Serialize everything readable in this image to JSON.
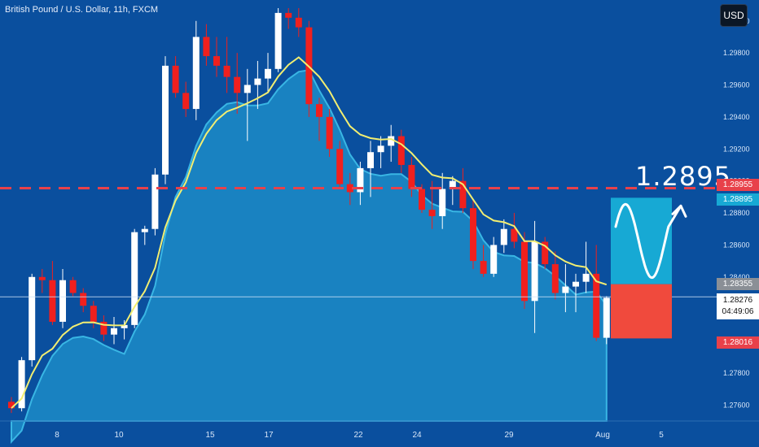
{
  "chart_data": {
    "type": "candlestick",
    "title": "British Pound / U.S. Dollar, 11h, FXCM",
    "currency_button": "USD",
    "ylim": [
      1.275,
      1.3008
    ],
    "y_ticks": [
      "1.27600",
      "1.27800",
      "1.28000",
      "1.28200",
      "1.28400",
      "1.28600",
      "1.28800",
      "1.29000",
      "1.29200",
      "1.29400",
      "1.29600",
      "1.29800",
      "1.30000"
    ],
    "x_ticks": [
      "8",
      "10",
      "15",
      "17",
      "22",
      "24",
      "29",
      "Aug",
      "5"
    ],
    "candles": [
      [
        1.2762,
        1.2765,
        1.2755,
        1.2758
      ],
      [
        1.2758,
        1.279,
        1.2756,
        1.2788
      ],
      [
        1.2788,
        1.2842,
        1.2784,
        1.284
      ],
      [
        1.284,
        1.2845,
        1.283,
        1.2838
      ],
      [
        1.2838,
        1.285,
        1.281,
        1.2812
      ],
      [
        1.2812,
        1.2845,
        1.2808,
        1.2838
      ],
      [
        1.2838,
        1.284,
        1.2828,
        1.283
      ],
      [
        1.283,
        1.2833,
        1.2818,
        1.2822
      ],
      [
        1.2822,
        1.2825,
        1.2808,
        1.2812
      ],
      [
        1.2812,
        1.2816,
        1.28,
        1.2804
      ],
      [
        1.2804,
        1.2815,
        1.2798,
        1.2808
      ],
      [
        1.2808,
        1.2813,
        1.2801,
        1.281
      ],
      [
        1.281,
        1.287,
        1.2808,
        1.2868
      ],
      [
        1.2868,
        1.2872,
        1.286,
        1.287
      ],
      [
        1.287,
        1.2908,
        1.2866,
        1.2904
      ],
      [
        1.2904,
        1.2978,
        1.2898,
        1.2972
      ],
      [
        1.2972,
        1.2978,
        1.2952,
        1.2955
      ],
      [
        1.2955,
        1.2962,
        1.294,
        1.2945
      ],
      [
        1.2945,
        1.3,
        1.2938,
        1.299
      ],
      [
        1.299,
        1.2998,
        1.2972,
        1.2978
      ],
      [
        1.2978,
        1.299,
        1.2965,
        1.2972
      ],
      [
        1.2972,
        1.299,
        1.2955,
        1.2965
      ],
      [
        1.2965,
        1.298,
        1.2942,
        1.2955
      ],
      [
        1.2955,
        1.297,
        1.2925,
        1.296
      ],
      [
        1.296,
        1.2975,
        1.2945,
        1.2964
      ],
      [
        1.2964,
        1.298,
        1.2955,
        1.297
      ],
      [
        1.297,
        1.3008,
        1.2968,
        1.3005
      ],
      [
        1.3005,
        1.3008,
        1.2995,
        1.3002
      ],
      [
        1.3002,
        1.3008,
        1.299,
        1.2996
      ],
      [
        1.2996,
        1.3,
        1.294,
        1.2948
      ],
      [
        1.2948,
        1.2952,
        1.2925,
        1.294
      ],
      [
        1.294,
        1.2945,
        1.2915,
        1.292
      ],
      [
        1.292,
        1.2925,
        1.2895,
        1.2898
      ],
      [
        1.2898,
        1.2905,
        1.2885,
        1.2893
      ],
      [
        1.2893,
        1.2912,
        1.2885,
        1.2908
      ],
      [
        1.2908,
        1.2925,
        1.289,
        1.2918
      ],
      [
        1.2918,
        1.2928,
        1.2908,
        1.2922
      ],
      [
        1.2922,
        1.2935,
        1.2912,
        1.2928
      ],
      [
        1.2928,
        1.2932,
        1.2905,
        1.291
      ],
      [
        1.291,
        1.2915,
        1.289,
        1.2895
      ],
      [
        1.2895,
        1.2898,
        1.288,
        1.2882
      ],
      [
        1.2882,
        1.29,
        1.287,
        1.2878
      ],
      [
        1.2878,
        1.2905,
        1.287,
        1.2895
      ],
      [
        1.2895,
        1.2903,
        1.2885,
        1.29
      ],
      [
        1.29,
        1.2908,
        1.288,
        1.2883
      ],
      [
        1.2883,
        1.2888,
        1.2845,
        1.285
      ],
      [
        1.285,
        1.286,
        1.284,
        1.2842
      ],
      [
        1.2842,
        1.2865,
        1.284,
        1.286
      ],
      [
        1.286,
        1.2876,
        1.2855,
        1.287
      ],
      [
        1.287,
        1.288,
        1.2858,
        1.2862
      ],
      [
        1.2862,
        1.2868,
        1.282,
        1.2825
      ],
      [
        1.2825,
        1.2875,
        1.2805,
        1.2862
      ],
      [
        1.2862,
        1.2865,
        1.2845,
        1.2848
      ],
      [
        1.2848,
        1.2856,
        1.2826,
        1.283
      ],
      [
        1.283,
        1.2848,
        1.2818,
        1.2834
      ],
      [
        1.2834,
        1.2842,
        1.2818,
        1.2837
      ],
      [
        1.2837,
        1.2862,
        1.283,
        1.2842
      ],
      [
        1.2842,
        1.286,
        1.28,
        1.2802
      ],
      [
        1.2802,
        1.2828,
        1.2798,
        1.2827
      ]
    ],
    "overlay_label_1": "1.28955",
    "overlay_label_2": "1.28895",
    "target_label": "1.2895",
    "current_price": "1.28276",
    "countdown": "04:49:06",
    "label_mid": "1.28355",
    "label_low": "1.28016",
    "colors": {
      "bg": "#0a4f9e",
      "up": "#ffffff",
      "down": "#f0201e",
      "ma": "#f2ee71",
      "area": "#1d8fc9",
      "dash": "#e8414a",
      "box_up": "#17a9d4",
      "box_down": "#f04a3d"
    }
  }
}
